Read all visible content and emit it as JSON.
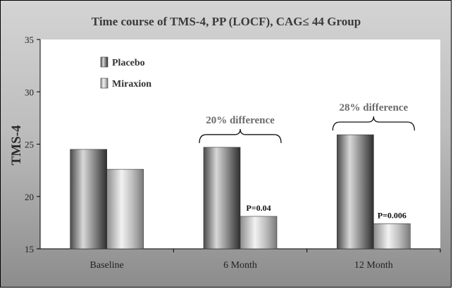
{
  "chart_data": {
    "type": "bar",
    "title": "Time course of TMS-4, PP (LOCF), CAG≤ 44 Group",
    "ylabel": "TMS-4",
    "xlabel": "",
    "ylim": [
      15,
      35
    ],
    "yticks": [
      15,
      20,
      25,
      30,
      35
    ],
    "categories": [
      "Baseline",
      "6 Month",
      "12 Month"
    ],
    "series": [
      {
        "name": "Placebo",
        "values": [
          24.5,
          24.7,
          25.9
        ],
        "color": "#5a5a5a"
      },
      {
        "name": "Miraxion",
        "values": [
          22.6,
          18.1,
          17.4
        ],
        "color": "#9a9a9a"
      }
    ],
    "annotations": [
      {
        "text": "20% difference",
        "category": "6 Month"
      },
      {
        "text": "28% difference",
        "category": "12 Month"
      }
    ],
    "pvalues": [
      {
        "text": "P=0.04",
        "category": "6 Month"
      },
      {
        "text": "P=0.006",
        "category": "12 Month"
      }
    ],
    "legend_position": "top-left",
    "grid": false
  }
}
